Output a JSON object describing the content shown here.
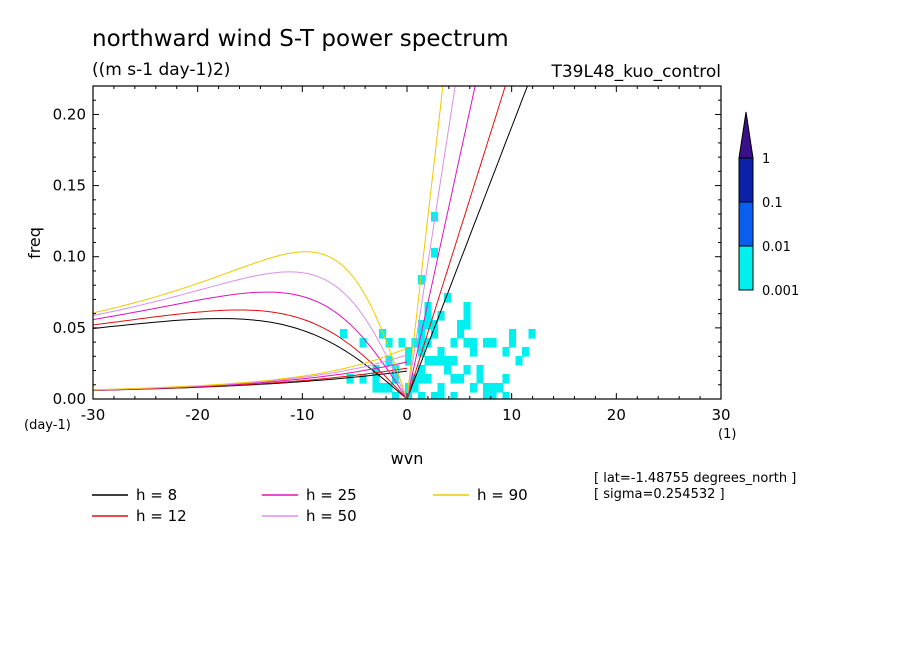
{
  "chart_data": {
    "type": "heatmap",
    "title": "northward wind S-T power spectrum",
    "units": "((m s-1 day-1)2)",
    "experiment": "T39L48_kuo_control",
    "xlabel": "wvn",
    "ylabel": "freq",
    "x_unit": "(1)",
    "y_unit": "(day-1)",
    "xlim": [
      -30,
      30
    ],
    "ylim": [
      0,
      0.22
    ],
    "xticks": [
      "-30",
      "-20",
      "-10",
      "0",
      "10",
      "20",
      "30"
    ],
    "xtick_values": [
      -30,
      -20,
      -10,
      0,
      10,
      20,
      30
    ],
    "yticks": [
      "0.00",
      "0.05",
      "0.10",
      "0.15",
      "0.20"
    ],
    "ytick_values": [
      0.0,
      0.05,
      0.1,
      0.15,
      0.2
    ],
    "colorbar": {
      "labels": [
        "0.001",
        "0.01",
        "0.1",
        "1"
      ],
      "levels": [
        0.001,
        0.01,
        0.1,
        1
      ],
      "colors": [
        "#00f0f0",
        "#0a5eee",
        "#0b22a8",
        "#3a0f8a"
      ],
      "extend": "max"
    },
    "annotations": [
      "[ lat=-1.48755 degrees_north ]",
      "[ sigma=0.254532 ]"
    ],
    "dispersion_curves": [
      {
        "name": "h = 8",
        "h": 8,
        "color": "#000000"
      },
      {
        "name": "h = 12",
        "h": 12,
        "color": "#e01010"
      },
      {
        "name": "h = 25",
        "h": 25,
        "color": "#e010c0"
      },
      {
        "name": "h = 50",
        "h": 50,
        "color": "#d890e8"
      },
      {
        "name": "h = 90",
        "h": 90,
        "color": "#f0c800"
      }
    ]
  },
  "colors": {
    "cyan": "#00f0f0",
    "light_blue": "#0a5eee",
    "dark_blue": "#0b22a8",
    "purple": "#3a0f8a",
    "background": "#ffffff"
  }
}
